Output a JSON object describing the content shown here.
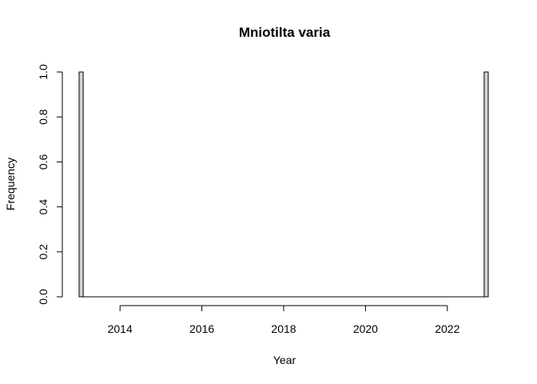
{
  "chart_data": {
    "type": "bar",
    "title": "Mniotilta varia",
    "xlabel": "Year",
    "ylabel": "Frequency",
    "bin_width": 0.1,
    "bins_start": 2013.0,
    "bins_end": 2023.0,
    "nonzero_bins": [
      {
        "start": 2013.0,
        "end": 2013.1,
        "count": 1
      },
      {
        "start": 2022.9,
        "end": 2023.0,
        "count": 1
      }
    ],
    "xticks": [
      2014,
      2016,
      2018,
      2020,
      2022
    ],
    "yticks": [
      "0.0",
      "0.2",
      "0.4",
      "0.6",
      "0.8",
      "1.0"
    ],
    "xlim": [
      2013.0,
      2023.0
    ],
    "ylim": [
      0,
      1
    ],
    "grid": false,
    "legend": "none",
    "colors": {
      "bar_fill": "#d3d3d3",
      "bar_stroke": "#000000"
    }
  }
}
